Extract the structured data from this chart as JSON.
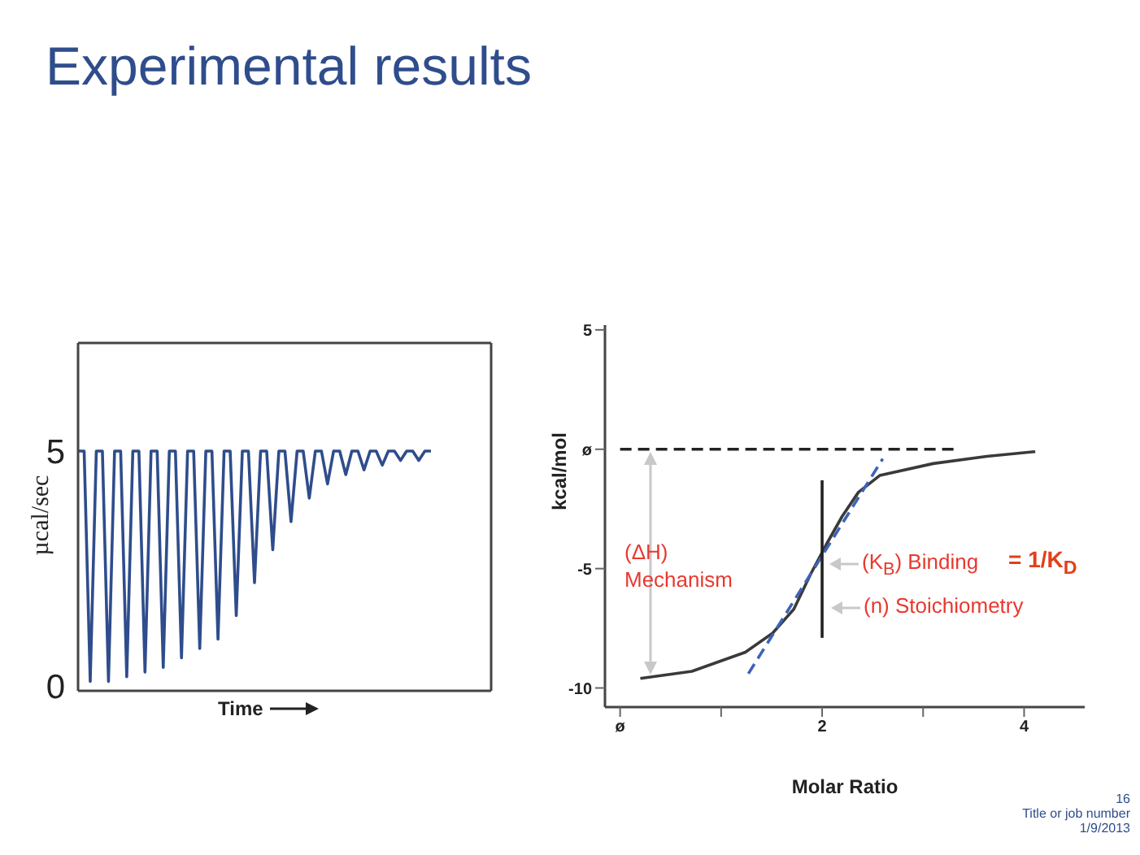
{
  "chart_data": [
    {
      "type": "line",
      "title": "Experimental results",
      "xlabel": "Time",
      "ylabel": "µcal/sec",
      "tick_labels": "y",
      "marker": "none",
      "line_style": "solid",
      "ylim": [
        -0.1,
        7.3
      ],
      "yticks": [
        0,
        5
      ],
      "categories": [
        null,
        null,
        null,
        null,
        null,
        null,
        null,
        null,
        null,
        null,
        null,
        null,
        null,
        null,
        null,
        null,
        null,
        null,
        null,
        null,
        null,
        null,
        null,
        null,
        null,
        null,
        null,
        null,
        null,
        null,
        null,
        null,
        null,
        null,
        null,
        null,
        null,
        null,
        null,
        null,
        null,
        null,
        null,
        null,
        null,
        null,
        null,
        null,
        null,
        null,
        null,
        null,
        null,
        null,
        null,
        null,
        null,
        null,
        null
      ],
      "series": [
        {
          "color": "#2f4d8c",
          "values": [
            5,
            5,
            0.1,
            5,
            5,
            0.1,
            5,
            5,
            0.2,
            5,
            5,
            0.3,
            5,
            5,
            0.4,
            5,
            5,
            0.6,
            5,
            5,
            0.8,
            5,
            5,
            1.0,
            5,
            5,
            1.5,
            5,
            5,
            2.2,
            5,
            5,
            2.9,
            5,
            5,
            3.5,
            5,
            5,
            4.0,
            5,
            5,
            4.3,
            5,
            5,
            4.5,
            5,
            5,
            4.6,
            5,
            5,
            4.7,
            5,
            5,
            4.8,
            5,
            5,
            4.8,
            5,
            5
          ]
        }
      ]
    },
    {
      "type": "line",
      "xlabel": "Molar Ratio",
      "ylabel": "kcal/mol",
      "marker": "none",
      "xlim": [
        -0.15,
        4.6
      ],
      "ylim": [
        -10.8,
        5.2
      ],
      "xticks": [
        {
          "value": 0,
          "label": "ø"
        },
        {
          "value": 1,
          "label": null
        },
        2,
        {
          "value": 3,
          "label": null
        },
        4
      ],
      "yticks": [
        -10,
        -5,
        {
          "value": 0,
          "label": "ø"
        },
        5
      ],
      "series": [
        {
          "color": "#3a3a3a",
          "line_style": "solid",
          "x": [
            0.2,
            0.71,
            1.24,
            1.51,
            1.72,
            1.89,
            2.04,
            2.2,
            2.36,
            2.57,
            3.1,
            3.63,
            4.11
          ],
          "values": [
            -9.6,
            -9.3,
            -8.5,
            -7.7,
            -6.7,
            -5.2,
            -4.0,
            -2.8,
            -1.8,
            -1.1,
            -0.6,
            -0.3,
            -0.1
          ]
        },
        {
          "color": "#3d63b8",
          "line_style": "dashed",
          "x": [
            1.27,
            2.6
          ],
          "values": [
            -9.4,
            -0.4
          ]
        },
        {
          "color": "#222222",
          "line_style": "dashed",
          "x": [
            0,
            3.34
          ],
          "values": [
            0,
            0
          ]
        },
        {
          "color": "#222222",
          "line_style": "solid",
          "x": [
            2,
            2
          ],
          "values": [
            -1.3,
            -7.9
          ]
        }
      ],
      "annotations": [
        "(ΔH) Mechanism",
        "(K$_{B}$) Binding",
        "(n) Stoichiometry",
        "= 1/K$_{D}$",
        "16",
        "Title or job number",
        "1/9/2013"
      ]
    }
  ]
}
